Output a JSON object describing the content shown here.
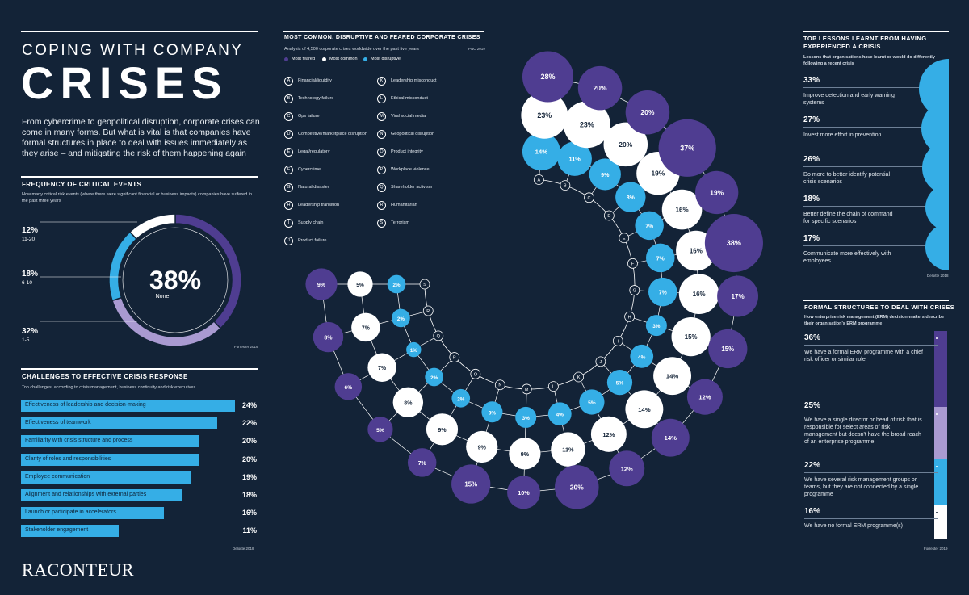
{
  "colors": {
    "background": "#132337",
    "most_feared": "#4f3d91",
    "most_common": "#ffffff",
    "most_disruptive": "#35aee6",
    "light_purple": "#a99ad1",
    "accent_text": "#0e2236"
  },
  "header": {
    "title_top": "COPING WITH COMPANY",
    "title_big": "CRISES",
    "intro": "From cybercrime to geopolitical disruption, corporate crises can come in many forms. But what is vital is that companies have formal structures in place to deal with issues immediately as they arise – and mitigating the risk of them happening again"
  },
  "logo": {
    "text": "RACONTEUR"
  },
  "frequency": {
    "title": "FREQUENCY OF CRITICAL EVENTS",
    "subtitle": "How many critical risk events (where there were significant financial or business impacts) companies have suffered in the past three years",
    "center_pct": "38%",
    "center_label": "None",
    "source": "Forrester 2019",
    "labels": [
      {
        "pct": "12%",
        "range": "11-20"
      },
      {
        "pct": "18%",
        "range": "6-10"
      },
      {
        "pct": "32%",
        "range": "1-5"
      }
    ]
  },
  "challenges": {
    "title": "CHALLENGES TO EFFECTIVE CRISIS RESPONSE",
    "subtitle": "Top challenges, according to crisis management, business continuity and risk executives",
    "source": "Deloitte 2018",
    "items": [
      {
        "label": "Effectiveness of leadership and decision-making",
        "value": "24%"
      },
      {
        "label": "Effectiveness of teamwork",
        "value": "22%"
      },
      {
        "label": "Familiarity with crisis structure and process",
        "value": "20%"
      },
      {
        "label": "Clarity of roles and responsibilities",
        "value": "20%"
      },
      {
        "label": "Employee communication",
        "value": "19%"
      },
      {
        "label": "Alignment and relationships with external parties",
        "value": "18%"
      },
      {
        "label": "Launch or participate in accelerators",
        "value": "16%"
      },
      {
        "label": "Stakeholder engagement",
        "value": "11%"
      }
    ]
  },
  "crises": {
    "title": "MOST COMMON, DISRUPTIVE AND FEARED CORPORATE CRISES",
    "subtitle": "Analysis of 4,500 corporate crises worldwide over the past five years",
    "source": "PwC 2019",
    "legend": [
      {
        "label": "Most feared"
      },
      {
        "label": "Most common"
      },
      {
        "label": "Most disruptive"
      }
    ],
    "categories": [
      {
        "letter": "A",
        "name": "Financial/liquidity"
      },
      {
        "letter": "B",
        "name": "Technology failure"
      },
      {
        "letter": "C",
        "name": "Ops failure"
      },
      {
        "letter": "D",
        "name": "Competitive/marketplace disruption"
      },
      {
        "letter": "E",
        "name": "Legal/regulatory"
      },
      {
        "letter": "F",
        "name": "Cybercrime"
      },
      {
        "letter": "G",
        "name": "Natural disaster"
      },
      {
        "letter": "H",
        "name": "Leadership transition"
      },
      {
        "letter": "I",
        "name": "Supply chain"
      },
      {
        "letter": "J",
        "name": "Product failure"
      },
      {
        "letter": "K",
        "name": "Leadership misconduct"
      },
      {
        "letter": "L",
        "name": "Ethical misconduct"
      },
      {
        "letter": "M",
        "name": "Viral social media"
      },
      {
        "letter": "N",
        "name": "Geopolitical disruption"
      },
      {
        "letter": "O",
        "name": "Product integrity"
      },
      {
        "letter": "P",
        "name": "Workplace violence"
      },
      {
        "letter": "Q",
        "name": "Shareholder activism"
      },
      {
        "letter": "R",
        "name": "Humanitarian"
      },
      {
        "letter": "S",
        "name": "Terrorism"
      }
    ]
  },
  "chart_data": [
    {
      "type": "pie",
      "title": "FREQUENCY OF CRITICAL EVENTS",
      "categories": [
        "None",
        "1-5",
        "6-10",
        "11-20"
      ],
      "values": [
        38,
        32,
        18,
        12
      ]
    },
    {
      "type": "bar",
      "title": "CHALLENGES TO EFFECTIVE CRISIS RESPONSE",
      "categories": [
        "Effectiveness of leadership and decision-making",
        "Effectiveness of teamwork",
        "Familiarity with crisis structure and process",
        "Clarity of roles and responsibilities",
        "Employee communication",
        "Alignment and relationships with external parties",
        "Launch or participate in accelerators",
        "Stakeholder engagement"
      ],
      "values": [
        24,
        22,
        20,
        20,
        19,
        18,
        16,
        11
      ]
    },
    {
      "type": "scatter",
      "title": "MOST COMMON, DISRUPTIVE AND FEARED CORPORATE CRISES",
      "categories": [
        "A",
        "B",
        "C",
        "D",
        "E",
        "F",
        "G",
        "H",
        "I",
        "J",
        "K",
        "L",
        "M",
        "N",
        "O",
        "P",
        "Q",
        "R",
        "S"
      ],
      "series": [
        {
          "name": "Most disruptive",
          "values": [
            14,
            11,
            9,
            8,
            7,
            7,
            7,
            3,
            4,
            5,
            5,
            4,
            3,
            3,
            2,
            2,
            1,
            2,
            2
          ]
        },
        {
          "name": "Most common",
          "values": [
            23,
            23,
            20,
            19,
            16,
            16,
            16,
            15,
            14,
            14,
            12,
            11,
            9,
            9,
            9,
            8,
            7,
            7,
            5
          ]
        },
        {
          "name": "Most feared",
          "values": [
            28,
            20,
            20,
            37,
            19,
            38,
            17,
            15,
            12,
            14,
            12,
            20,
            10,
            15,
            7,
            5,
            6,
            8,
            9
          ]
        }
      ]
    },
    {
      "type": "bar",
      "title": "TOP LESSONS LEARNT FROM HAVING EXPERIENCED A CRISIS",
      "categories": [
        "Improve detection and early warning systems",
        "Invest more effort in prevention",
        "Do more to better identify potential crisis scenarios",
        "Better define the chain of command for specific scenarios",
        "Communicate more effectively with employees"
      ],
      "values": [
        33,
        27,
        26,
        18,
        17
      ]
    },
    {
      "type": "bar",
      "title": "FORMAL STRUCTURES TO DEAL WITH CRISES",
      "categories": [
        "We have a formal ERM programme with a chief risk officer or similar role",
        "We have a single director or head of risk that is responsible for select areas of risk management but doesn't have the broad reach of an enterprise programme",
        "We have several risk management groups or teams, but they are not connected by a single programme",
        "We have no formal ERM programme(s)"
      ],
      "values": [
        36,
        25,
        22,
        16
      ]
    }
  ],
  "lessons": {
    "title": "TOP LESSONS LEARNT FROM HAVING EXPERIENCED A CRISIS",
    "subtitle": "Lessons that organisations have learnt or would do differently following a recent crisis",
    "source": "Deloitte 2018",
    "items": [
      {
        "value": "33%",
        "label": "Improve detection and early warning systems"
      },
      {
        "value": "27%",
        "label": "Invest more effort in prevention"
      },
      {
        "value": "26%",
        "label": "Do more to better identify potential crisis scenarios"
      },
      {
        "value": "18%",
        "label": "Better define the chain of command for specific scenarios"
      },
      {
        "value": "17%",
        "label": "Communicate more effectively with employees"
      }
    ]
  },
  "erm": {
    "title": "FORMAL STRUCTURES TO DEAL WITH CRISES",
    "subtitle": "How enterprise risk management (ERM) decision-makers describe their organisation's ERM programme",
    "source": "Forrester 2019",
    "items": [
      {
        "value": "36%",
        "label": "We have a formal ERM programme with a chief risk officer or similar role"
      },
      {
        "value": "25%",
        "label": "We have a single director or head of risk that is responsible for select areas of risk management but doesn't have the broad reach of an enterprise programme"
      },
      {
        "value": "22%",
        "label": "We have several risk management groups or teams, but they are not connected by a single programme"
      },
      {
        "value": "16%",
        "label": "We have no formal ERM programme(s)"
      }
    ]
  }
}
